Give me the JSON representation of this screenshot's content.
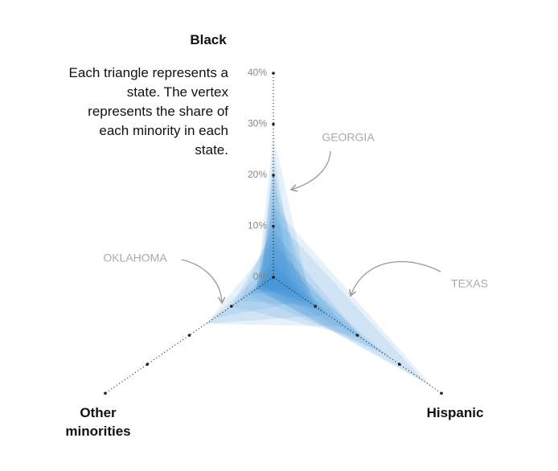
{
  "chart_data": {
    "type": "triangle",
    "subtitle": "Each triangle represents a state. The vertex represents the share of each minority in each state.",
    "axes": [
      "Black",
      "Hispanic",
      "Other minorities"
    ],
    "annotations": [
      "GEORGIA",
      "TEXAS",
      "OKLAHOMA"
    ],
    "ylim": [
      0,
      40
    ],
    "yticks": [
      {
        "value": 0,
        "label": "0%"
      },
      {
        "value": 10,
        "label": "10%"
      },
      {
        "value": 20,
        "label": "20%"
      },
      {
        "value": 30,
        "label": "30%"
      },
      {
        "value": 40,
        "label": "40%"
      }
    ],
    "color": "#3b8fd9",
    "triangles": [
      [
        28,
        9,
        4
      ],
      [
        25,
        6,
        3
      ],
      [
        22,
        4,
        3
      ],
      [
        21,
        8,
        4
      ],
      [
        18,
        10,
        3
      ],
      [
        15,
        5,
        4
      ],
      [
        14,
        38,
        4
      ],
      [
        12,
        36,
        4
      ],
      [
        10,
        10,
        8
      ],
      [
        9,
        21,
        10
      ],
      [
        7,
        17,
        16
      ],
      [
        6,
        22,
        3
      ],
      [
        4,
        28,
        4
      ],
      [
        3,
        13,
        16
      ],
      [
        2,
        13,
        3
      ],
      [
        1,
        8,
        14
      ],
      [
        1,
        4,
        6
      ],
      [
        3,
        6,
        3
      ],
      [
        8,
        12,
        5
      ],
      [
        2,
        26,
        6
      ]
    ]
  }
}
